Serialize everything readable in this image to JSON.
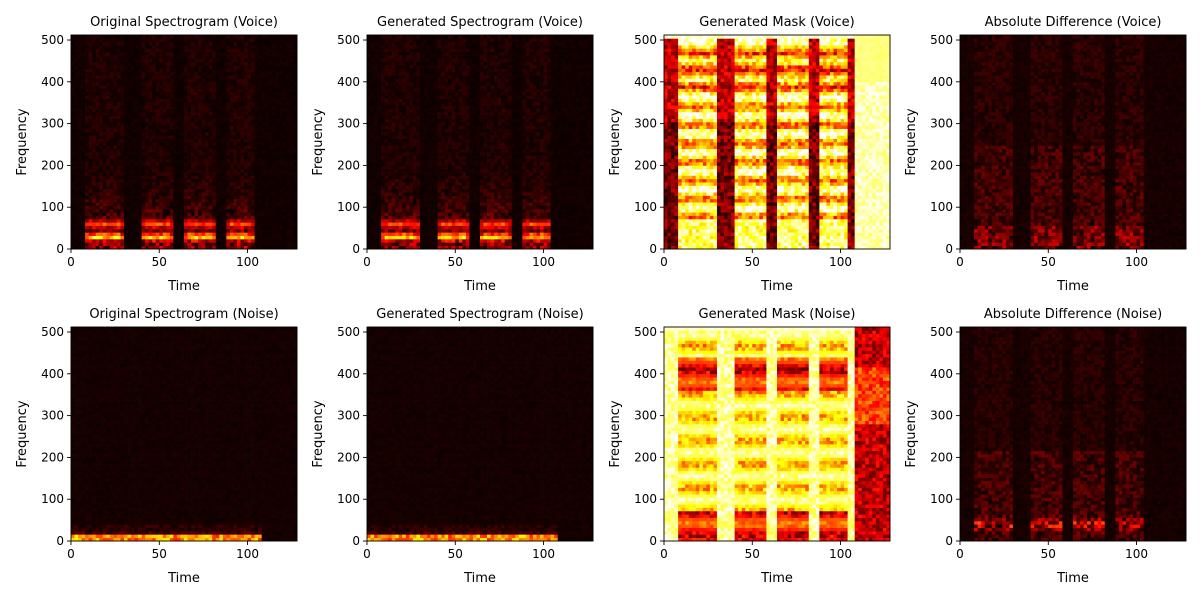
{
  "chart_data": [
    {
      "type": "heatmap",
      "id": "orig-voice",
      "row": 0,
      "col": 0,
      "title": "Original Spectrogram (Voice)",
      "xlabel": "Time",
      "ylabel": "Frequency",
      "xlim": [
        0,
        128
      ],
      "ylim": [
        0,
        512
      ],
      "xticks": [
        0,
        50,
        100
      ],
      "yticks": [
        0,
        100,
        200,
        300,
        400,
        500
      ],
      "colormap": "hot",
      "description": "Mostly black; faint red harmonic bands at ~25-35 and ~55-65 Hz bins during speech segments",
      "segments": [
        [
          8,
          30
        ],
        [
          40,
          58
        ],
        [
          64,
          82
        ],
        [
          88,
          104
        ]
      ],
      "pattern": "voice-spec"
    },
    {
      "type": "heatmap",
      "id": "gen-voice",
      "row": 0,
      "col": 1,
      "title": "Generated Spectrogram (Voice)",
      "xlabel": "Time",
      "ylabel": "Frequency",
      "xlim": [
        0,
        128
      ],
      "ylim": [
        0,
        512
      ],
      "xticks": [
        0,
        50,
        100
      ],
      "yticks": [
        0,
        100,
        200,
        300,
        400,
        500
      ],
      "colormap": "hot",
      "segments": [
        [
          8,
          30
        ],
        [
          40,
          58
        ],
        [
          64,
          82
        ],
        [
          88,
          104
        ]
      ],
      "pattern": "voice-spec"
    },
    {
      "type": "heatmap",
      "id": "mask-voice",
      "row": 0,
      "col": 2,
      "title": "Generated Mask (Voice)",
      "xlabel": "Time",
      "ylabel": "Frequency",
      "xlim": [
        0,
        128
      ],
      "ylim": [
        0,
        512
      ],
      "xticks": [
        0,
        50,
        100
      ],
      "yticks": [
        0,
        100,
        200,
        300,
        400,
        500
      ],
      "colormap": "hot",
      "segments": [
        [
          8,
          30
        ],
        [
          40,
          58
        ],
        [
          64,
          82
        ],
        [
          88,
          104
        ]
      ],
      "pattern": "voice-mask"
    },
    {
      "type": "heatmap",
      "id": "diff-voice",
      "row": 0,
      "col": 3,
      "title": "Absolute Difference (Voice)",
      "xlabel": "Time",
      "ylabel": "Frequency",
      "xlim": [
        0,
        128
      ],
      "ylim": [
        0,
        512
      ],
      "xticks": [
        0,
        50,
        100
      ],
      "yticks": [
        0,
        100,
        200,
        300,
        400,
        500
      ],
      "colormap": "hot",
      "segments": [
        [
          8,
          30
        ],
        [
          40,
          58
        ],
        [
          64,
          82
        ],
        [
          88,
          104
        ]
      ],
      "pattern": "voice-diff"
    },
    {
      "type": "heatmap",
      "id": "orig-noise",
      "row": 1,
      "col": 0,
      "title": "Original Spectrogram (Noise)",
      "xlabel": "Time",
      "ylabel": "Frequency",
      "xlim": [
        0,
        128
      ],
      "ylim": [
        0,
        512
      ],
      "xticks": [
        0,
        50,
        100
      ],
      "yticks": [
        0,
        100,
        200,
        300,
        400,
        500
      ],
      "colormap": "hot",
      "segments": [
        [
          0,
          108
        ]
      ],
      "pattern": "noise-spec"
    },
    {
      "type": "heatmap",
      "id": "gen-noise",
      "row": 1,
      "col": 1,
      "title": "Generated Spectrogram (Noise)",
      "xlabel": "Time",
      "ylabel": "Frequency",
      "xlim": [
        0,
        128
      ],
      "ylim": [
        0,
        512
      ],
      "xticks": [
        0,
        50,
        100
      ],
      "yticks": [
        0,
        100,
        200,
        300,
        400,
        500
      ],
      "colormap": "hot",
      "segments": [
        [
          0,
          108
        ]
      ],
      "pattern": "noise-spec"
    },
    {
      "type": "heatmap",
      "id": "mask-noise",
      "row": 1,
      "col": 2,
      "title": "Generated Mask (Noise)",
      "xlabel": "Time",
      "ylabel": "Frequency",
      "xlim": [
        0,
        128
      ],
      "ylim": [
        0,
        512
      ],
      "xticks": [
        0,
        50,
        100
      ],
      "yticks": [
        0,
        100,
        200,
        300,
        400,
        500
      ],
      "colormap": "hot",
      "segments": [
        [
          8,
          30
        ],
        [
          40,
          58
        ],
        [
          64,
          82
        ],
        [
          88,
          104
        ]
      ],
      "pattern": "noise-mask"
    },
    {
      "type": "heatmap",
      "id": "diff-noise",
      "row": 1,
      "col": 3,
      "title": "Absolute Difference (Noise)",
      "xlabel": "Time",
      "ylabel": "Frequency",
      "xlim": [
        0,
        128
      ],
      "ylim": [
        0,
        512
      ],
      "xticks": [
        0,
        50,
        100
      ],
      "yticks": [
        0,
        100,
        200,
        300,
        400,
        500
      ],
      "colormap": "hot",
      "segments": [
        [
          8,
          30
        ],
        [
          40,
          58
        ],
        [
          64,
          82
        ],
        [
          88,
          104
        ]
      ],
      "pattern": "noise-diff"
    }
  ]
}
